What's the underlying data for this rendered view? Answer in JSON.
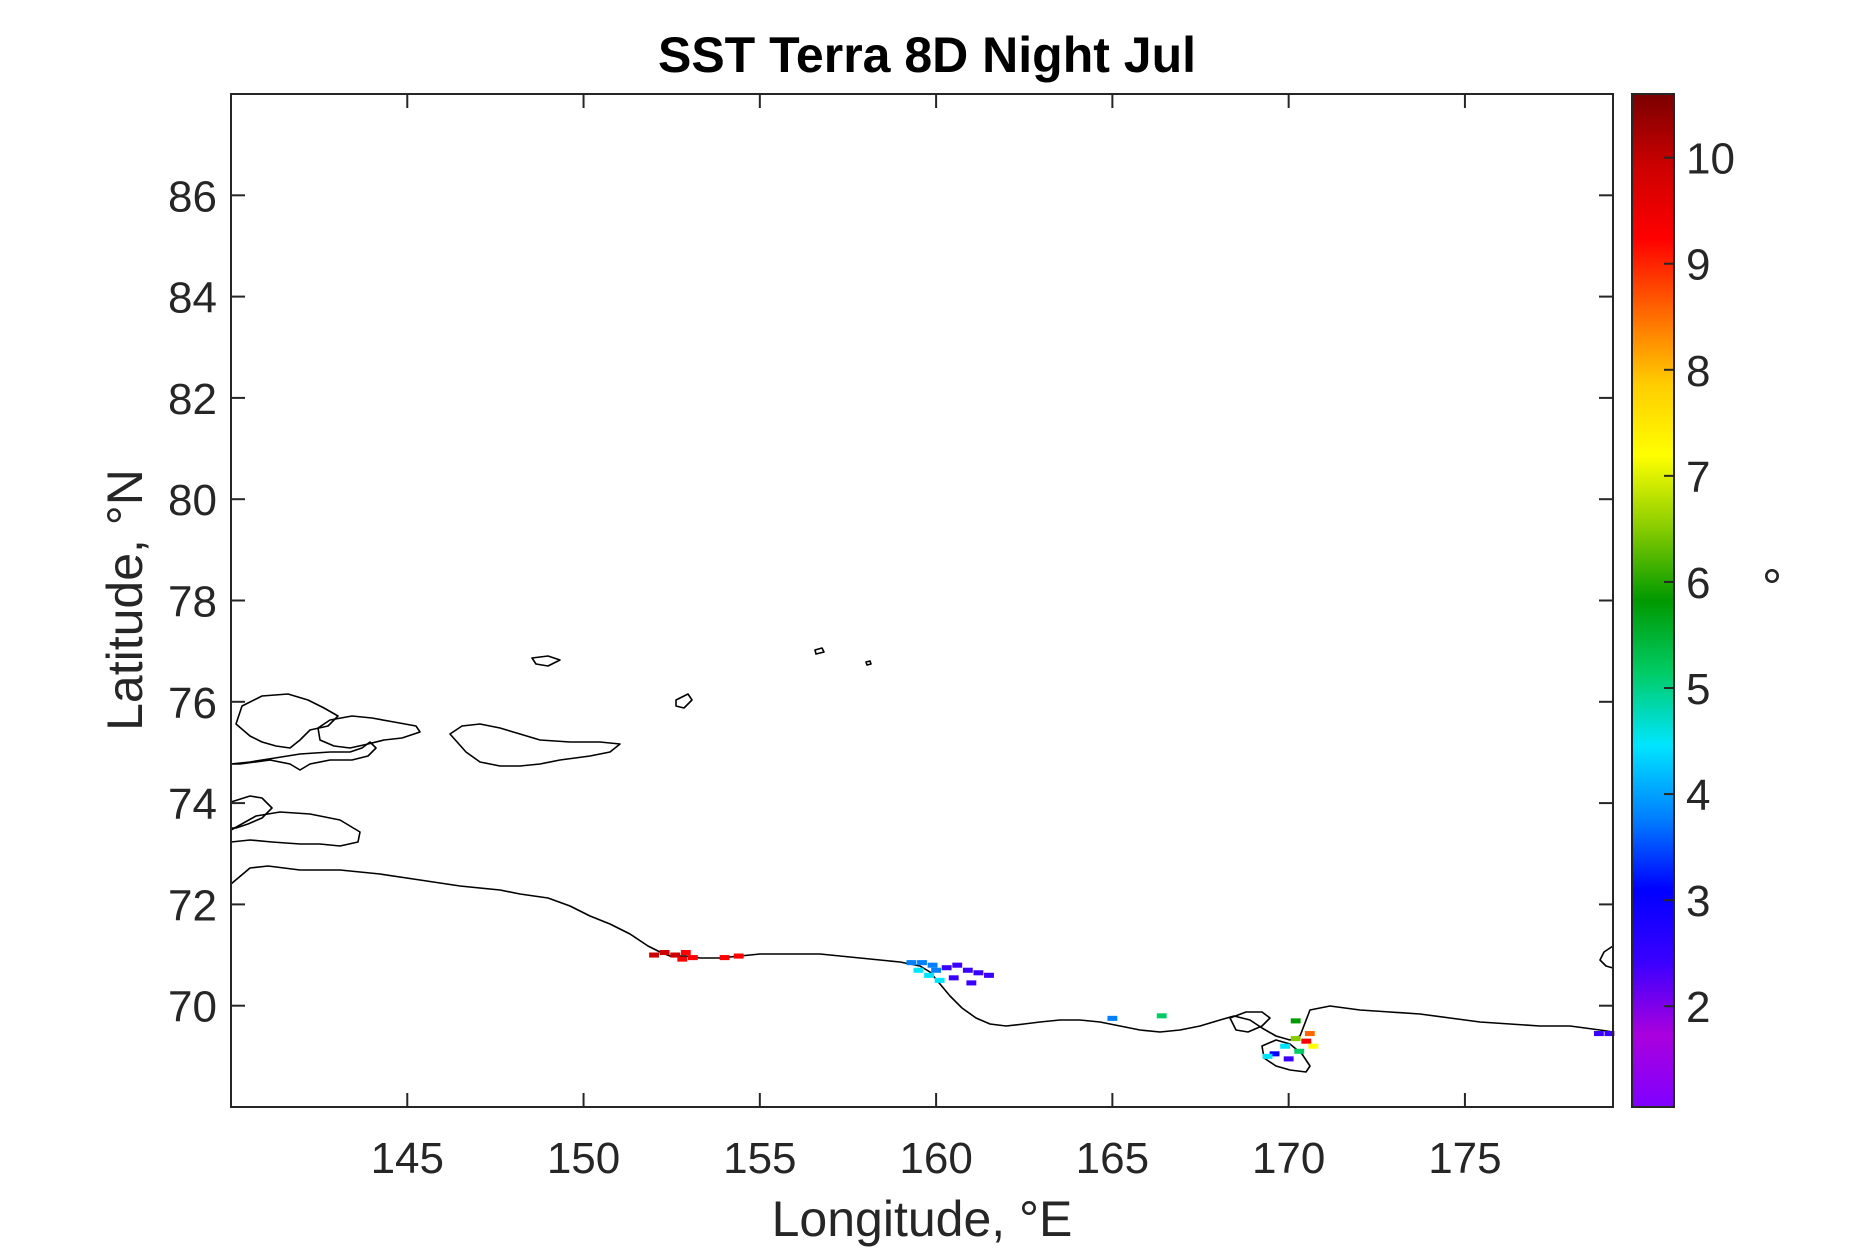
{
  "chart_data": {
    "type": "heatmap",
    "title": "SST Terra 8D Night Jul",
    "xlabel": "Longitude, °E",
    "ylabel": "Latitude, °N",
    "xlim": [
      140,
      179.2
    ],
    "ylim": [
      68,
      88
    ],
    "x_ticks": [
      145,
      150,
      155,
      160,
      165,
      170,
      175
    ],
    "x_tick_labels": [
      "145",
      "150",
      "155",
      "160",
      "165",
      "170",
      "175"
    ],
    "y_ticks": [
      70,
      72,
      74,
      76,
      78,
      80,
      82,
      84,
      86
    ],
    "y_tick_labels": [
      "70",
      "72",
      "74",
      "76",
      "78",
      "80",
      "82",
      "84",
      "86"
    ],
    "colorbar": {
      "label": "°",
      "range": [
        1.05,
        10.6
      ],
      "ticks": [
        2,
        3,
        4,
        5,
        6,
        7,
        8,
        9,
        10
      ],
      "tick_labels": [
        "2",
        "3",
        "4",
        "5",
        "6",
        "7",
        "8",
        "9",
        "10"
      ],
      "colormap": [
        "#7f00ff",
        "#aa00dd",
        "#3a00ff",
        "#0000ff",
        "#0080ff",
        "#00e5ff",
        "#00cc66",
        "#009900",
        "#88cc00",
        "#ffff00",
        "#ffcc00",
        "#ff6600",
        "#ff0000",
        "#cc0000",
        "#7a0000"
      ]
    },
    "grid": false,
    "coastline_color": "#000000",
    "sst_cells": [
      {
        "lon": 152.0,
        "lat": 71.0,
        "value": 10.2
      },
      {
        "lon": 152.3,
        "lat": 71.05,
        "value": 10.0
      },
      {
        "lon": 152.6,
        "lat": 71.0,
        "value": 9.6
      },
      {
        "lon": 152.9,
        "lat": 71.05,
        "value": 9.3
      },
      {
        "lon": 152.8,
        "lat": 70.92,
        "value": 9.5
      },
      {
        "lon": 153.1,
        "lat": 70.95,
        "value": 9.4
      },
      {
        "lon": 154.0,
        "lat": 70.95,
        "value": 9.4
      },
      {
        "lon": 154.4,
        "lat": 70.98,
        "value": 9.3
      },
      {
        "lon": 159.3,
        "lat": 70.85,
        "value": 4.1
      },
      {
        "lon": 159.6,
        "lat": 70.85,
        "value": 3.6
      },
      {
        "lon": 159.9,
        "lat": 70.8,
        "value": 3.5
      },
      {
        "lon": 159.5,
        "lat": 70.7,
        "value": 4.5
      },
      {
        "lon": 159.8,
        "lat": 70.6,
        "value": 4.8
      },
      {
        "lon": 160.1,
        "lat": 70.5,
        "value": 4.3
      },
      {
        "lon": 160.0,
        "lat": 70.7,
        "value": 3.8
      },
      {
        "lon": 160.3,
        "lat": 70.75,
        "value": 2.4
      },
      {
        "lon": 160.6,
        "lat": 70.8,
        "value": 2.2
      },
      {
        "lon": 160.9,
        "lat": 70.7,
        "value": 2.6
      },
      {
        "lon": 161.2,
        "lat": 70.65,
        "value": 2.4
      },
      {
        "lon": 160.5,
        "lat": 70.55,
        "value": 2.5
      },
      {
        "lon": 161.0,
        "lat": 70.45,
        "value": 2.3
      },
      {
        "lon": 161.5,
        "lat": 70.6,
        "value": 2.1
      },
      {
        "lon": 165.0,
        "lat": 69.75,
        "value": 3.6
      },
      {
        "lon": 166.4,
        "lat": 69.8,
        "value": 5.4
      },
      {
        "lon": 170.2,
        "lat": 69.7,
        "value": 5.8
      },
      {
        "lon": 170.6,
        "lat": 69.45,
        "value": 8.8
      },
      {
        "lon": 170.5,
        "lat": 69.3,
        "value": 9.5
      },
      {
        "lon": 170.2,
        "lat": 69.35,
        "value": 6.5
      },
      {
        "lon": 169.9,
        "lat": 69.2,
        "value": 4.3
      },
      {
        "lon": 170.3,
        "lat": 69.1,
        "value": 5.2
      },
      {
        "lon": 170.7,
        "lat": 69.2,
        "value": 7.4
      },
      {
        "lon": 169.6,
        "lat": 69.05,
        "value": 3.4
      },
      {
        "lon": 170.0,
        "lat": 68.95,
        "value": 2.7
      },
      {
        "lon": 169.4,
        "lat": 69.0,
        "value": 4.6
      },
      {
        "lon": 178.8,
        "lat": 69.45,
        "value": 2.3
      },
      {
        "lon": 179.1,
        "lat": 69.45,
        "value": 2.1
      }
    ]
  }
}
